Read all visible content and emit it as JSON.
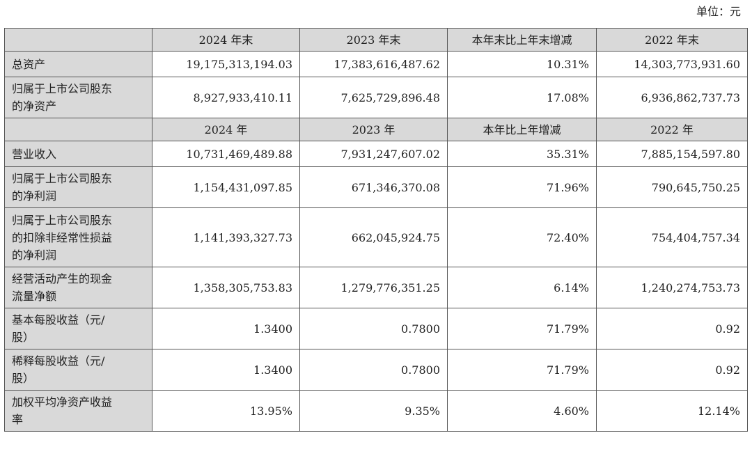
{
  "unit_label": "单位：元",
  "header1": [
    "",
    "2024 年末",
    "2023 年末",
    "本年末比上年末增减",
    "2022 年末"
  ],
  "header2": [
    "",
    "2024 年",
    "2023 年",
    "本年比上年增减",
    "2022 年"
  ],
  "rows": [
    {
      "label": [
        "总资产"
      ],
      "values": [
        "19,175,313,194.03",
        "17,383,616,487.62",
        "10.31%",
        "14,303,773,931.60"
      ]
    },
    {
      "label": [
        "归属于上市公司股东",
        "的净资产"
      ],
      "values": [
        "8,927,933,410.11",
        "7,625,729,896.48",
        "17.08%",
        "6,936,862,737.73"
      ]
    },
    {
      "label": [
        "营业收入"
      ],
      "values": [
        "10,731,469,489.88",
        "7,931,247,607.02",
        "35.31%",
        "7,885,154,597.80"
      ]
    },
    {
      "label": [
        "归属于上市公司股东",
        "的净利润"
      ],
      "values": [
        "1,154,431,097.85",
        "671,346,370.08",
        "71.96%",
        "790,645,750.25"
      ]
    },
    {
      "label": [
        "归属于上市公司股东",
        "的扣除非经常性损益",
        "的净利润"
      ],
      "values": [
        "1,141,393,327.73",
        "662,045,924.75",
        "72.40%",
        "754,404,757.34"
      ]
    },
    {
      "label": [
        "经营活动产生的现金",
        "流量净额"
      ],
      "values": [
        "1,358,305,753.83",
        "1,279,776,351.25",
        "6.14%",
        "1,240,274,753.73"
      ]
    },
    {
      "label": [
        "基本每股收益（元/",
        "股）"
      ],
      "values": [
        "1.3400",
        "0.7800",
        "71.79%",
        "0.92"
      ]
    },
    {
      "label": [
        "稀释每股收益（元/",
        "股）"
      ],
      "values": [
        "1.3400",
        "0.7800",
        "71.79%",
        "0.92"
      ]
    },
    {
      "label": [
        "加权平均净资产收益",
        "率"
      ],
      "values": [
        "13.95%",
        "9.35%",
        "4.60%",
        "12.14%"
      ]
    }
  ]
}
